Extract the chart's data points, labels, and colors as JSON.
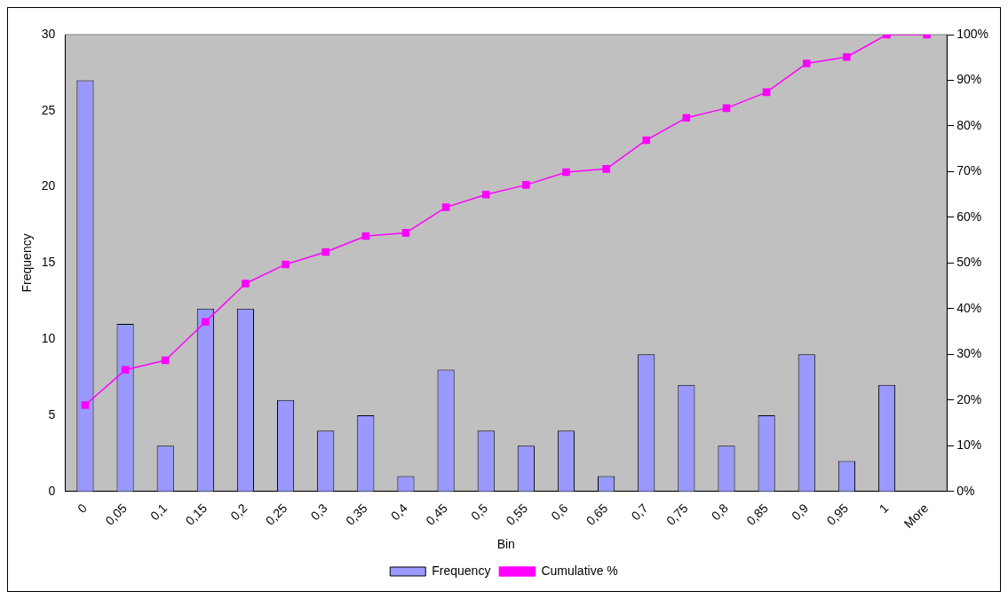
{
  "chart_data": {
    "type": "bar",
    "xlabel": "Bin",
    "ylabel": "Frequency",
    "categories": [
      "0",
      "0,05",
      "0,1",
      "0,15",
      "0,2",
      "0,25",
      "0,3",
      "0,35",
      "0,4",
      "0,45",
      "0,5",
      "0,55",
      "0,6",
      "0,65",
      "0,7",
      "0,75",
      "0,8",
      "0,85",
      "0,9",
      "0,95",
      "1",
      "More"
    ],
    "series": [
      {
        "name": "Frequency",
        "color": "#9999ff",
        "values": [
          27,
          11,
          3,
          12,
          12,
          6,
          4,
          5,
          1,
          8,
          4,
          3,
          4,
          1,
          9,
          7,
          3,
          5,
          9,
          2,
          7,
          0
        ]
      },
      {
        "name": "Cumulative %",
        "type": "line",
        "axis": "y2",
        "color": "#ff00ff",
        "marker": "square",
        "values": [
          18.9,
          26.6,
          28.7,
          37.1,
          45.5,
          49.7,
          52.4,
          55.9,
          56.6,
          62.2,
          65.0,
          67.1,
          69.9,
          70.6,
          76.9,
          81.8,
          83.9,
          87.4,
          93.7,
          95.1,
          100,
          100
        ]
      }
    ],
    "ylim": [
      0,
      30
    ],
    "yticks": [
      0,
      5,
      10,
      15,
      20,
      25,
      30
    ],
    "y2lim": [
      0,
      100
    ],
    "y2ticks": [
      {
        "value": 0,
        "label": "0%"
      },
      {
        "value": 10,
        "label": "10%"
      },
      {
        "value": 20,
        "label": "20%"
      },
      {
        "value": 30,
        "label": "30%"
      },
      {
        "value": 40,
        "label": "40%"
      },
      {
        "value": 50,
        "label": "50%"
      },
      {
        "value": 60,
        "label": "60%"
      },
      {
        "value": 70,
        "label": "70%"
      },
      {
        "value": 80,
        "label": "80%"
      },
      {
        "value": 90,
        "label": "90%"
      },
      {
        "value": 100,
        "label": "100%"
      }
    ],
    "grid": false,
    "legend": "bottom"
  }
}
